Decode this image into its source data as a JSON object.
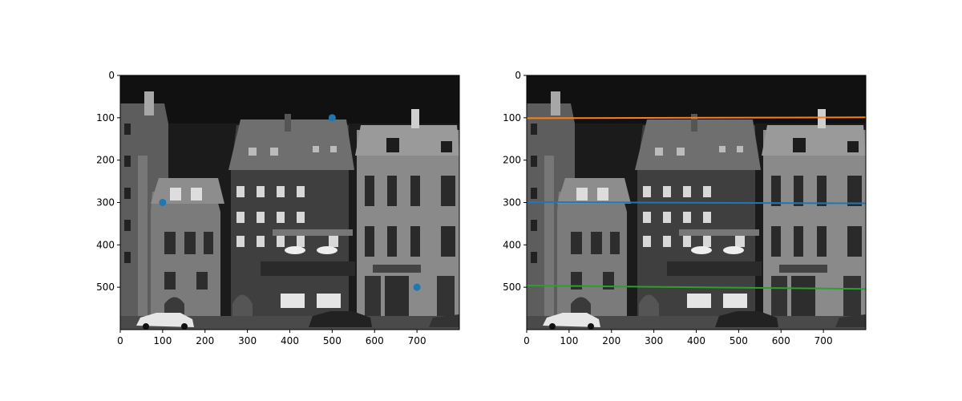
{
  "chart_data": [
    {
      "type": "scatter",
      "panel": "left",
      "background": "grayscale photo of a row of model-railway townhouses (image shown with imshow)",
      "xlim": [
        0,
        800
      ],
      "ylim": [
        600,
        0
      ],
      "xticks": [
        0,
        100,
        200,
        300,
        400,
        500,
        600,
        700
      ],
      "yticks": [
        0,
        100,
        200,
        300,
        400,
        500
      ],
      "points": [
        {
          "x": 100,
          "y": 300,
          "color": "#1f77b4"
        },
        {
          "x": 500,
          "y": 100,
          "color": "#1f77b4"
        },
        {
          "x": 700,
          "y": 500,
          "color": "#1f77b4"
        }
      ]
    },
    {
      "type": "line",
      "panel": "right",
      "background": "same grayscale photo of model townhouses",
      "xlim": [
        0,
        800
      ],
      "ylim": [
        600,
        0
      ],
      "xticks": [
        0,
        100,
        200,
        300,
        400,
        500,
        600,
        700
      ],
      "yticks": [
        0,
        100,
        200,
        300,
        400,
        500
      ],
      "series": [
        {
          "color": "#1f77b4",
          "x": [
            0,
            800
          ],
          "y": [
            299,
            302
          ]
        },
        {
          "color": "#ff7f0e",
          "x": [
            0,
            800
          ],
          "y": [
            101,
            99
          ]
        },
        {
          "color": "#2ca02c",
          "x": [
            0,
            800
          ],
          "y": [
            496,
            504
          ]
        }
      ]
    }
  ]
}
